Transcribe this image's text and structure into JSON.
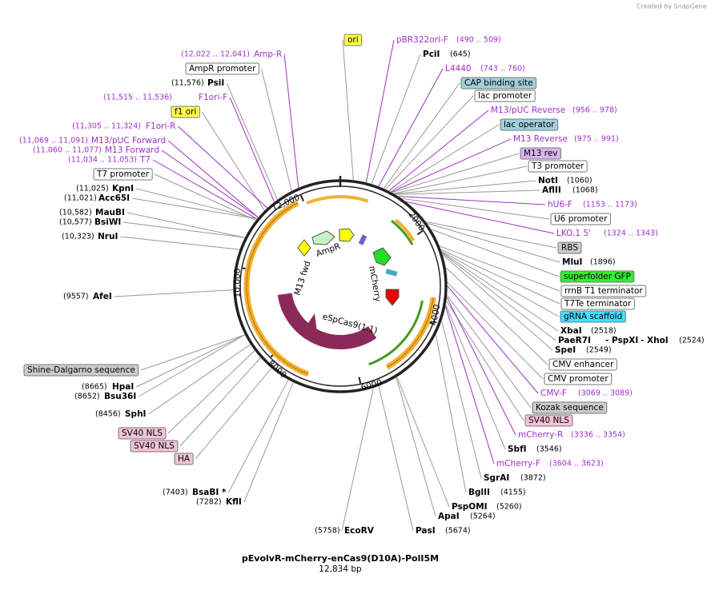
{
  "brand": "Created by SnapGene",
  "title": "pEvolvR-mCherry-enCas9(D10A)-PolI5M",
  "size": "12,834 bp",
  "ring_labels": [
    "12,000",
    "2000",
    "4000",
    "6000",
    "8000",
    "10,000"
  ],
  "feature_labels": [
    "AmpR",
    "M13 fwd",
    "mCherry",
    "eSpCas9(1.1)"
  ],
  "labels": [
    {
      "name": "ori"
    },
    {
      "name": "pBR322ori-F",
      "position": "(490 .. 509)"
    },
    {
      "name": "PciI",
      "position": "(645)"
    },
    {
      "name": "L4440",
      "position": "(743 .. 760)"
    },
    {
      "name": "CAP binding site"
    },
    {
      "name": "lac promoter"
    },
    {
      "name": "M13/pUC Reverse",
      "position": "(956 .. 978)"
    },
    {
      "name": "lac operator"
    },
    {
      "name": "M13 Reverse",
      "position": "(975 .. 991)"
    },
    {
      "name": "M13 rev"
    },
    {
      "name": "T3 promoter"
    },
    {
      "name": "NotI",
      "position": "(1060)"
    },
    {
      "name": "AflII",
      "position": "(1068)"
    },
    {
      "name": "hU6-F",
      "position": "(1153 .. 1173)"
    },
    {
      "name": "U6 promoter"
    },
    {
      "name": "LKO.1 5'",
      "position": "(1324 .. 1343)"
    },
    {
      "name": "RBS"
    },
    {
      "name": "MluI",
      "position": "(1896)"
    },
    {
      "name": "superfolder GFP"
    },
    {
      "name": "rrnB T1 terminator"
    },
    {
      "name": "T7Te terminator"
    },
    {
      "name": "gRNA scaffold"
    },
    {
      "name": "XbaI",
      "position": "(2518)"
    },
    {
      "name": "PaeR7I",
      "extra": [
        "- PspXI",
        "- XhoI"
      ],
      "position": "(2524)"
    },
    {
      "name": "SpeI",
      "position": "(2549)"
    },
    {
      "name": "CMV enhancer"
    },
    {
      "name": "CMV promoter"
    },
    {
      "name": "CMV-F",
      "position": "(3069 .. 3089)"
    },
    {
      "name": "Kozak sequence"
    },
    {
      "name": "SV40 NLS"
    },
    {
      "name": "mCherry-R",
      "position": "(3336 .. 3354)"
    },
    {
      "name": "SbfI",
      "position": "(3546)"
    },
    {
      "name": "mCherry-F",
      "position": "(3604 .. 3623)"
    },
    {
      "name": "SgrAI",
      "position": "(3872)"
    },
    {
      "name": "BglII",
      "position": "(4155)"
    },
    {
      "name": "PspOMI",
      "position": "(5260)"
    },
    {
      "name": "ApaI",
      "position": "(5264)"
    },
    {
      "name": "PasI",
      "position": "(5674)"
    },
    {
      "name": "EcoRV",
      "position": "(5758)"
    },
    {
      "name": "Amp-R",
      "position": "(12,022 .. 12,041)"
    },
    {
      "name": "AmpR promoter"
    },
    {
      "name": "PsiI",
      "position": "(11,576)"
    },
    {
      "name": "F1ori-F",
      "position": "(11,515 .. 11,536)"
    },
    {
      "name": "f1 ori"
    },
    {
      "name": "F1ori-R",
      "position": "(11,305 .. 11,324)"
    },
    {
      "name": "M13/pUC Forward",
      "position": "(11,069 .. 11,091)"
    },
    {
      "name": "M13 Forward",
      "position": "(11,060 .. 11,077)"
    },
    {
      "name": "T7",
      "position": "(11,034 .. 11,053)"
    },
    {
      "name": "T7 promoter"
    },
    {
      "name": "KpnI",
      "position": "(11,025)"
    },
    {
      "name": "Acc65I",
      "position": "(11,021)"
    },
    {
      "name": "MauBI",
      "position": "(10,582)"
    },
    {
      "name": "BsiWI",
      "position": "(10,577)"
    },
    {
      "name": "NruI",
      "position": "(10,323)"
    },
    {
      "name": "AfeI",
      "position": "(9557)"
    },
    {
      "name": "Shine-Dalgarno sequence"
    },
    {
      "name": "HpaI",
      "position": "(8665)"
    },
    {
      "name": "Bsu36I",
      "position": "(8652)"
    },
    {
      "name": "SphI",
      "position": "(8456)"
    },
    {
      "name": "SV40 NLS"
    },
    {
      "name": "SV40 NLS"
    },
    {
      "name": "HA"
    },
    {
      "name": "BsaBI *",
      "position": "(7403)"
    },
    {
      "name": "KflI",
      "position": "(7282)"
    }
  ]
}
